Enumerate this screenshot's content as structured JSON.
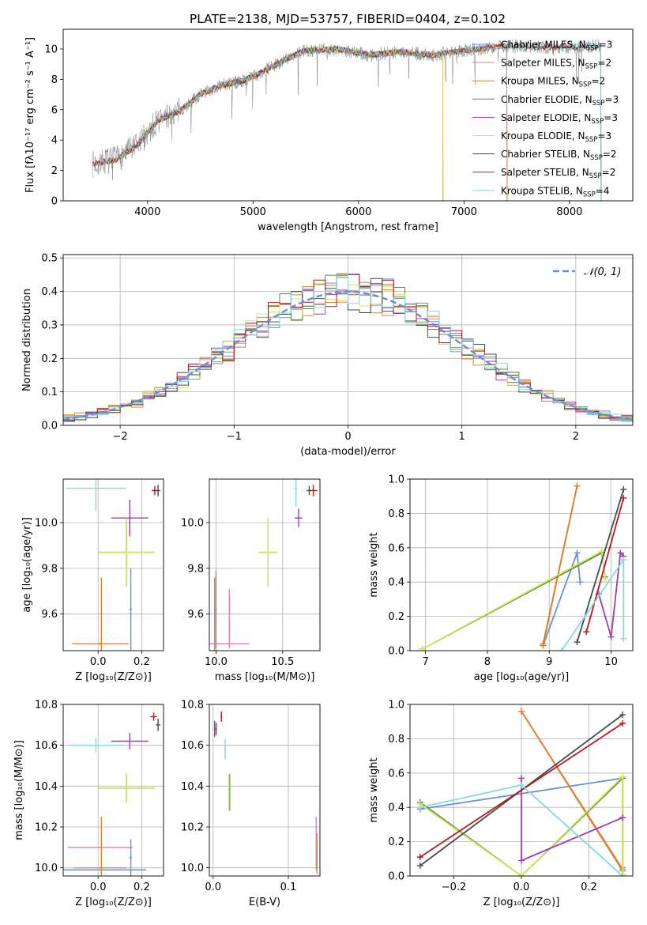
{
  "figure": {
    "title": "PLATE=2138, MJD=53757, FIBERID=0404, z=0.102"
  },
  "colors": {
    "Chabrier MILES": "#6a8ed6",
    "Salpeter MILES": "#e5815f",
    "Kroupa MILES": "#d9822b",
    "Chabrier ELODIE": "#5a8f4a",
    "Salpeter ELODIE": "#a03bb5",
    "Kroupa ELODIE": "#d6e65a",
    "Chabrier STELIB": "#4a4a4a",
    "Salpeter STELIB": "#b01c1c",
    "Kroupa STELIB": "#86d9dc",
    "gray": "#808080",
    "normal": "#6a8ed6",
    "pink": "#e47fb9"
  },
  "chart_data": [
    {
      "id": "spectrum",
      "type": "line",
      "xlabel": "wavelength [Angstrom, rest frame]",
      "ylabel": "Flux [fλ10⁻¹⁷ erg cm⁻² s⁻¹ A⁻¹]",
      "xlim": [
        3200,
        8600
      ],
      "ylim": [
        0,
        11.3
      ],
      "xticks": [
        4000,
        5000,
        6000,
        7000,
        8000
      ],
      "yticks": [
        0,
        2,
        4,
        6,
        8,
        10
      ],
      "legend_position": "right",
      "legend": [
        {
          "label": "Chabrier MILES, N",
          "sub": "SSP",
          "tail": "=3",
          "color_key": "Chabrier MILES"
        },
        {
          "label": "Salpeter MILES, N",
          "sub": "SSP",
          "tail": "=2",
          "color_key": "Salpeter MILES"
        },
        {
          "label": "Kroupa MILES, N",
          "sub": "SSP",
          "tail": "=2",
          "color_key": "Kroupa MILES"
        },
        {
          "label": "Chabrier ELODIE, N",
          "sub": "SSP",
          "tail": "=3",
          "color_key": "Chabrier ELODIE"
        },
        {
          "label": "Salpeter ELODIE, N",
          "sub": "SSP",
          "tail": "=3",
          "color_key": "Salpeter ELODIE"
        },
        {
          "label": "Kroupa ELODIE, N",
          "sub": "SSP",
          "tail": "=3",
          "color_key": "Kroupa ELODIE"
        },
        {
          "label": "Chabrier STELIB, N",
          "sub": "SSP",
          "tail": "=2",
          "color_key": "Chabrier STELIB"
        },
        {
          "label": "Salpeter STELIB, N",
          "sub": "SSP",
          "tail": "=2",
          "color_key": "Salpeter STELIB"
        },
        {
          "label": "Kroupa STELIB, N",
          "sub": "SSP",
          "tail": "=4",
          "color_key": "Kroupa STELIB"
        }
      ],
      "continuum": {
        "x": [
          3480,
          3600,
          3700,
          3800,
          3900,
          4000,
          4100,
          4200,
          4300,
          4500,
          4700,
          4900,
          5100,
          5300,
          5500,
          5800,
          6100,
          6400,
          6700,
          7000,
          7400,
          7800,
          8300
        ],
        "y": [
          2.4,
          2.6,
          2.7,
          3.2,
          3.6,
          4.5,
          5.3,
          5.6,
          5.9,
          7.0,
          7.6,
          7.9,
          8.5,
          9.3,
          9.9,
          10.0,
          9.6,
          9.8,
          9.6,
          9.9,
          10.2,
          10.1,
          10.2
        ]
      },
      "model_ranges": [
        {
          "color_key": "Chabrier MILES",
          "x": [
            3480,
            7410
          ]
        },
        {
          "color_key": "Salpeter MILES",
          "x": [
            3480,
            7410
          ]
        },
        {
          "color_key": "Kroupa MILES",
          "x": [
            3480,
            7410
          ]
        },
        {
          "color_key": "Chabrier ELODIE",
          "x": [
            3900,
            6800
          ]
        },
        {
          "color_key": "Salpeter ELODIE",
          "x": [
            3900,
            6800
          ]
        },
        {
          "color_key": "Kroupa ELODIE",
          "x": [
            3900,
            6800
          ]
        },
        {
          "color_key": "Chabrier STELIB",
          "x": [
            3480,
            8300
          ]
        },
        {
          "color_key": "Salpeter STELIB",
          "x": [
            3480,
            8300
          ]
        },
        {
          "color_key": "Kroupa STELIB",
          "x": [
            3480,
            8300
          ]
        }
      ]
    },
    {
      "id": "residuals",
      "type": "step",
      "xlabel": "(data-model)/error",
      "ylabel": "Normed distribution",
      "xlim": [
        -2.5,
        2.5
      ],
      "ylim": [
        0,
        0.51
      ],
      "xticks": [
        -2,
        -1,
        0,
        1,
        2
      ],
      "xticklabels": [
        "−2",
        "−1",
        "0",
        "1",
        "2"
      ],
      "yticks": [
        0.0,
        0.1,
        0.2,
        0.3,
        0.4,
        0.5
      ],
      "yticklabels": [
        "0.0",
        "0.1",
        "0.2",
        "0.3",
        "0.4",
        "0.5"
      ],
      "grid": true,
      "legend_position": "top-right",
      "normal_label": "𝒩(0, 1)",
      "bin_width": 0.1
    },
    {
      "id": "age_vs_Z",
      "type": "errorbar",
      "xlabel": "Z [log₁₀(Z/Z⊙)]",
      "ylabel": "age  [log₁₀(age/yr)]",
      "xlim": [
        -0.16,
        0.3
      ],
      "ylim": [
        9.44,
        10.19
      ],
      "xticks": [
        0.0,
        0.2
      ],
      "xticklabels": [
        "0.0",
        "0.2"
      ],
      "yticks": [
        9.6,
        9.8,
        10.0
      ],
      "yticklabels": [
        "9.6",
        "9.8",
        "10.0"
      ],
      "grid": true,
      "points": [
        {
          "x": -0.01,
          "y": 10.15,
          "xerr": 0.14,
          "yerr": 0.1,
          "color_key": "Kroupa STELIB"
        },
        {
          "x": 0.145,
          "y": 10.02,
          "xerr": 0.085,
          "yerr": 0.08,
          "color_key": "Salpeter ELODIE"
        },
        {
          "x": 0.13,
          "y": 9.87,
          "xerr": 0.13,
          "yerr": 0.15,
          "color_key": "Chabrier ELODIE"
        },
        {
          "x": 0.13,
          "y": 9.87,
          "xerr": 0.13,
          "yerr": 0.15,
          "color_key": "Kroupa ELODIE"
        },
        {
          "x": 0.15,
          "y": 9.62,
          "xerr": 0.005,
          "yerr": 0.18,
          "color_key": "Chabrier MILES"
        },
        {
          "x": 0.01,
          "y": 9.47,
          "xerr": 0.13,
          "yerr": 0.005,
          "color_key": "Salpeter MILES"
        },
        {
          "x": 0.015,
          "y": 9.6,
          "xerr": 0.003,
          "yerr": 0.16,
          "color_key": "Kroupa MILES"
        },
        {
          "x": 0.26,
          "y": 10.14,
          "xerr": 0.015,
          "yerr": 0.02,
          "color_key": "Salpeter STELIB"
        },
        {
          "x": 0.275,
          "y": 10.14,
          "xerr": 0.01,
          "yerr": 0.025,
          "color_key": "Chabrier STELIB"
        }
      ]
    },
    {
      "id": "age_vs_mass",
      "type": "errorbar",
      "xlabel": "mass [log₁₀(M/M⊙)]",
      "xlim": [
        9.95,
        10.78
      ],
      "ylim": [
        9.44,
        10.19
      ],
      "xticks": [
        10.0,
        10.5
      ],
      "xticklabels": [
        "10.0",
        "10.5"
      ],
      "yticks": [
        9.6,
        9.8,
        10.0
      ],
      "yticklabels": [
        "9.6",
        "9.8",
        "10.0"
      ],
      "grid": true,
      "points": [
        {
          "x": 10.6,
          "y": 10.15,
          "xerr": 0.01,
          "yerr": 0.08,
          "color_key": "Kroupa STELIB"
        },
        {
          "x": 10.62,
          "y": 10.02,
          "xerr": 0.03,
          "yerr": 0.04,
          "color_key": "Salpeter ELODIE"
        },
        {
          "x": 10.39,
          "y": 9.87,
          "xerr": 0.07,
          "yerr": 0.15,
          "color_key": "Chabrier ELODIE"
        },
        {
          "x": 10.39,
          "y": 9.87,
          "xerr": 0.07,
          "yerr": 0.15,
          "color_key": "Kroupa ELODIE"
        },
        {
          "x": 10.0,
          "y": 9.62,
          "xerr": 0.005,
          "yerr": 0.17,
          "color_key": "Chabrier MILES"
        },
        {
          "x": 10.0,
          "y": 9.47,
          "xerr": 0.005,
          "yerr": 0.003,
          "color_key": "Salpeter MILES"
        },
        {
          "x": 9.99,
          "y": 9.6,
          "xerr": 0.003,
          "yerr": 0.16,
          "color_key": "Kroupa MILES"
        },
        {
          "x": 10.1,
          "y": 9.47,
          "xerr": 0.15,
          "yerr": 0.005,
          "color_key": "pink"
        },
        {
          "x": 10.1,
          "y": 9.58,
          "xerr": 0.003,
          "yerr": 0.13,
          "color_key": "pink"
        },
        {
          "x": 10.73,
          "y": 10.14,
          "xerr": 0.03,
          "yerr": 0.025,
          "color_key": "Salpeter STELIB"
        },
        {
          "x": 10.7,
          "y": 10.14,
          "xerr": 0.02,
          "yerr": 0.02,
          "color_key": "Chabrier STELIB"
        }
      ]
    },
    {
      "id": "massweight_vs_age",
      "type": "line",
      "xlabel": "age  [log₁₀(age/yr)]",
      "ylabel": "mass weight",
      "xlim": [
        6.75,
        10.35
      ],
      "ylim": [
        0,
        1.0
      ],
      "xticks": [
        7,
        8,
        9,
        10
      ],
      "xticklabels": [
        "7",
        "8",
        "9",
        "10"
      ],
      "yticks": [
        0.0,
        0.2,
        0.4,
        0.6,
        0.8,
        1.0
      ],
      "yticklabels": [
        "0.0",
        "0.2",
        "0.4",
        "0.6",
        "0.8",
        "1.0"
      ],
      "grid": true,
      "series": [
        {
          "color_key": "Chabrier MILES",
          "x": [
            8.9,
            9.45,
            9.5
          ],
          "y": [
            0.03,
            0.57,
            0.4
          ]
        },
        {
          "color_key": "Salpeter MILES",
          "x": [
            8.9,
            9.45
          ],
          "y": [
            0.04,
            0.96
          ]
        },
        {
          "color_key": "Kroupa MILES",
          "x": [
            8.9,
            9.45
          ],
          "y": [
            0.03,
            0.96
          ]
        },
        {
          "color_key": "Chabrier ELODIE",
          "x": [
            6.95,
            9.85,
            9.9
          ],
          "y": [
            0.01,
            0.57,
            0.43
          ]
        },
        {
          "color_key": "Kroupa ELODIE",
          "x": [
            6.95,
            9.85,
            9.9
          ],
          "y": [
            0.01,
            0.58,
            0.42
          ]
        },
        {
          "color_key": "Salpeter ELODIE",
          "x": [
            9.8,
            10.0,
            10.15,
            10.2
          ],
          "y": [
            0.33,
            0.08,
            0.57,
            0.55
          ]
        },
        {
          "color_key": "Chabrier STELIB",
          "x": [
            9.45,
            10.2
          ],
          "y": [
            0.05,
            0.94
          ]
        },
        {
          "color_key": "Salpeter STELIB",
          "x": [
            9.6,
            10.2
          ],
          "y": [
            0.11,
            0.89
          ]
        },
        {
          "color_key": "Kroupa STELIB",
          "x": [
            9.2,
            10.2,
            10.2
          ],
          "y": [
            0.0,
            0.53,
            0.07
          ]
        }
      ]
    },
    {
      "id": "mass_vs_Z",
      "type": "errorbar",
      "xlabel": "Z [log₁₀(Z/Z⊙)]",
      "ylabel": "mass [log₁₀(M/M⊙)]",
      "xlim": [
        -0.16,
        0.3
      ],
      "ylim": [
        9.96,
        10.8
      ],
      "xticks": [
        0.0,
        0.2
      ],
      "xticklabels": [
        "0.0",
        "0.2"
      ],
      "yticks": [
        10.0,
        10.2,
        10.4,
        10.6,
        10.8
      ],
      "yticklabels": [
        "10.0",
        "10.2",
        "10.4",
        "10.6",
        "10.8"
      ],
      "grid": true,
      "points": [
        {
          "x": -0.01,
          "y": 10.6,
          "xerr": 0.12,
          "yerr": 0.035,
          "color_key": "Kroupa STELIB"
        },
        {
          "x": 0.145,
          "y": 10.62,
          "xerr": 0.085,
          "yerr": 0.04,
          "color_key": "Salpeter ELODIE"
        },
        {
          "x": 0.13,
          "y": 10.39,
          "xerr": 0.13,
          "yerr": 0.07,
          "color_key": "Chabrier ELODIE"
        },
        {
          "x": 0.13,
          "y": 10.39,
          "xerr": 0.13,
          "yerr": 0.07,
          "color_key": "Kroupa ELODIE"
        },
        {
          "x": 0.01,
          "y": 10.1,
          "xerr": 0.15,
          "yerr": 0.003,
          "color_key": "pink"
        },
        {
          "x": 0.15,
          "y": 10.05,
          "xerr": 0.005,
          "yerr": 0.09,
          "color_key": "Chabrier MILES"
        },
        {
          "x": 0.03,
          "y": 9.99,
          "xerr": 0.19,
          "yerr": 0.003,
          "color_key": "Chabrier MILES"
        },
        {
          "x": 0.01,
          "y": 10.0,
          "xerr": 0.12,
          "yerr": 0.003,
          "color_key": "Salpeter MILES"
        },
        {
          "x": 0.015,
          "y": 10.1,
          "xerr": 0.003,
          "yerr": 0.15,
          "color_key": "Kroupa MILES"
        },
        {
          "x": 0.255,
          "y": 10.74,
          "xerr": 0.015,
          "yerr": 0.02,
          "color_key": "Salpeter STELIB"
        },
        {
          "x": 0.275,
          "y": 10.7,
          "xerr": 0.01,
          "yerr": 0.03,
          "color_key": "Chabrier STELIB"
        }
      ]
    },
    {
      "id": "mass_vs_EBV",
      "type": "errorbar",
      "xlabel": "E(B-V)",
      "xlim": [
        -0.005,
        0.142
      ],
      "ylim": [
        9.96,
        10.8
      ],
      "xticks": [
        0.0,
        0.1
      ],
      "xticklabels": [
        "0.0",
        "0.1"
      ],
      "yticks": [
        10.0,
        10.2,
        10.4,
        10.6,
        10.8
      ],
      "yticklabels": [
        "10.0",
        "10.2",
        "10.4",
        "10.6",
        "10.8"
      ],
      "grid": true,
      "points": [
        {
          "x": 0.002,
          "y": 10.68,
          "xerr": 0.001,
          "yerr": 0.04,
          "color_key": "Salpeter ELODIE"
        },
        {
          "x": 0.004,
          "y": 10.68,
          "xerr": 0.001,
          "yerr": 0.03,
          "color_key": "Chabrier STELIB"
        },
        {
          "x": 0.011,
          "y": 10.74,
          "xerr": 0.001,
          "yerr": 0.025,
          "color_key": "Salpeter STELIB"
        },
        {
          "x": 0.016,
          "y": 10.58,
          "xerr": 0.001,
          "yerr": 0.05,
          "color_key": "Kroupa STELIB"
        },
        {
          "x": 0.022,
          "y": 10.37,
          "xerr": 0.001,
          "yerr": 0.09,
          "color_key": "Chabrier ELODIE"
        },
        {
          "x": 0.021,
          "y": 10.37,
          "xerr": 0.001,
          "yerr": 0.09,
          "color_key": "Kroupa ELODIE"
        },
        {
          "x": 0.137,
          "y": 10.12,
          "xerr": 0.001,
          "yerr": 0.13,
          "color_key": "pink"
        },
        {
          "x": 0.138,
          "y": 10.07,
          "xerr": 0.001,
          "yerr": 0.1,
          "color_key": "Kroupa MILES"
        }
      ]
    },
    {
      "id": "massweight_vs_Z",
      "type": "line",
      "xlabel": "Z [log₁₀(Z/Z⊙)]",
      "ylabel": "mass weight",
      "xlim": [
        -0.33,
        0.33
      ],
      "ylim": [
        0,
        1.0
      ],
      "xticks": [
        -0.2,
        0.0,
        0.2
      ],
      "xticklabels": [
        "−0.2",
        "0.0",
        "0.2"
      ],
      "yticks": [
        0.0,
        0.2,
        0.4,
        0.6,
        0.8,
        1.0
      ],
      "yticklabels": [
        "0.0",
        "0.2",
        "0.4",
        "0.6",
        "0.8",
        "1.0"
      ],
      "grid": true,
      "series": [
        {
          "color_key": "Chabrier MILES",
          "x": [
            -0.3,
            0.3,
            0.3
          ],
          "y": [
            0.39,
            0.57,
            0.05
          ]
        },
        {
          "color_key": "Salpeter MILES",
          "x": [
            0.0,
            0.3
          ],
          "y": [
            0.96,
            0.04
          ]
        },
        {
          "color_key": "Kroupa MILES",
          "x": [
            0.0,
            0.3
          ],
          "y": [
            0.96,
            0.03
          ]
        },
        {
          "color_key": "Chabrier ELODIE",
          "x": [
            -0.3,
            0.0,
            0.3,
            0.3
          ],
          "y": [
            0.43,
            0.0,
            0.57,
            0.01
          ]
        },
        {
          "color_key": "Kroupa ELODIE",
          "x": [
            -0.3,
            0.0,
            0.3,
            0.3
          ],
          "y": [
            0.42,
            0.0,
            0.58,
            0.01
          ]
        },
        {
          "color_key": "Salpeter ELODIE",
          "x": [
            0.0,
            0.0,
            0.3
          ],
          "y": [
            0.57,
            0.09,
            0.34
          ]
        },
        {
          "color_key": "Chabrier STELIB",
          "x": [
            -0.3,
            0.3
          ],
          "y": [
            0.06,
            0.94
          ]
        },
        {
          "color_key": "Salpeter STELIB",
          "x": [
            -0.3,
            0.3
          ],
          "y": [
            0.11,
            0.89
          ]
        },
        {
          "color_key": "Kroupa STELIB",
          "x": [
            -0.3,
            0.0,
            0.3
          ],
          "y": [
            0.4,
            0.53,
            0.0
          ]
        }
      ]
    }
  ]
}
